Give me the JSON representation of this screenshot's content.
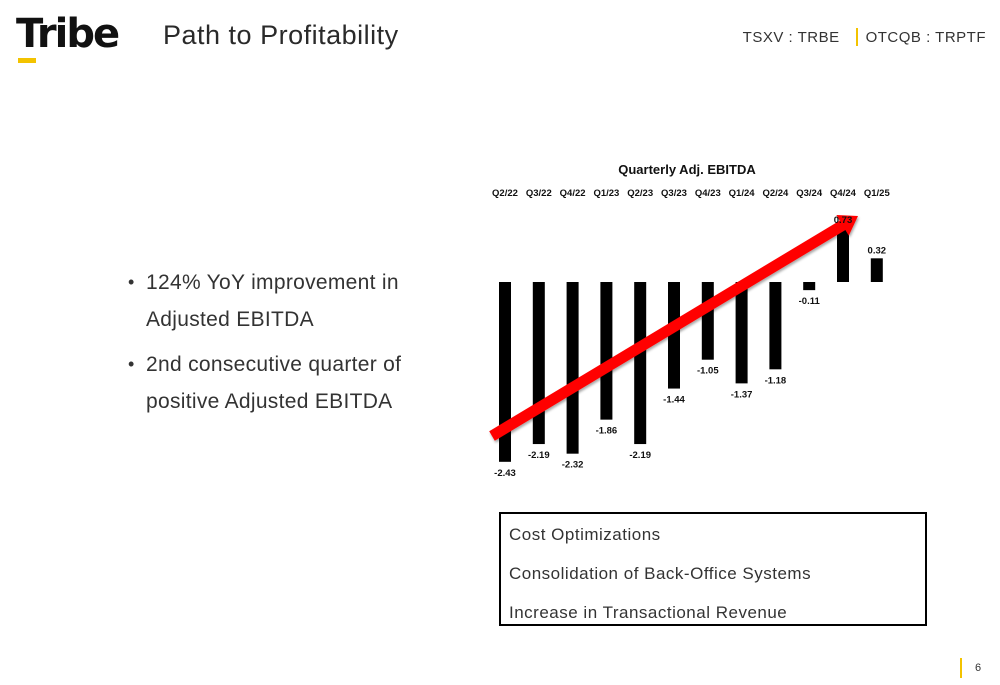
{
  "header": {
    "logo_text": "Tribe",
    "title": "Path to Profitability",
    "ticker_tsxv": "TSXV : TRBE",
    "ticker_otc": "OTCQB : TRPTF"
  },
  "bullets": [
    "124% YoY improvement in Adjusted EBITDA",
    "2nd consecutive quarter of positive Adjusted EBITDA"
  ],
  "drivers": [
    "Cost Optimizations",
    "Consolidation of Back-Office Systems",
    "Increase in Transactional Revenue"
  ],
  "page_number": "6",
  "colors": {
    "accent": "#f3c300",
    "bar": "#000000",
    "arrow": "#ff0000"
  },
  "chart_data": {
    "type": "bar",
    "title": "Quarterly Adj. EBITDA",
    "categories": [
      "Q2/22",
      "Q3/22",
      "Q4/22",
      "Q1/23",
      "Q2/23",
      "Q3/23",
      "Q4/23",
      "Q1/24",
      "Q2/24",
      "Q3/24",
      "Q4/24",
      "Q1/25"
    ],
    "values": [
      -2.43,
      -2.19,
      -2.32,
      -1.86,
      -2.19,
      -1.44,
      -1.05,
      -1.37,
      -1.18,
      -0.11,
      0.73,
      0.32
    ],
    "value_labels": [
      "-2.43",
      "-2.19",
      "-2.32",
      "-1.86",
      "-2.19",
      "-1.44",
      "-1.05",
      "-1.37",
      "-1.18",
      "-0.11",
      "0.73",
      "0.32"
    ],
    "category_axis_position": "top",
    "value_axis_shown": false,
    "grid": false,
    "legend": "none",
    "trend_arrow": "red, rising left to right",
    "xlabel": "",
    "ylabel": ""
  }
}
